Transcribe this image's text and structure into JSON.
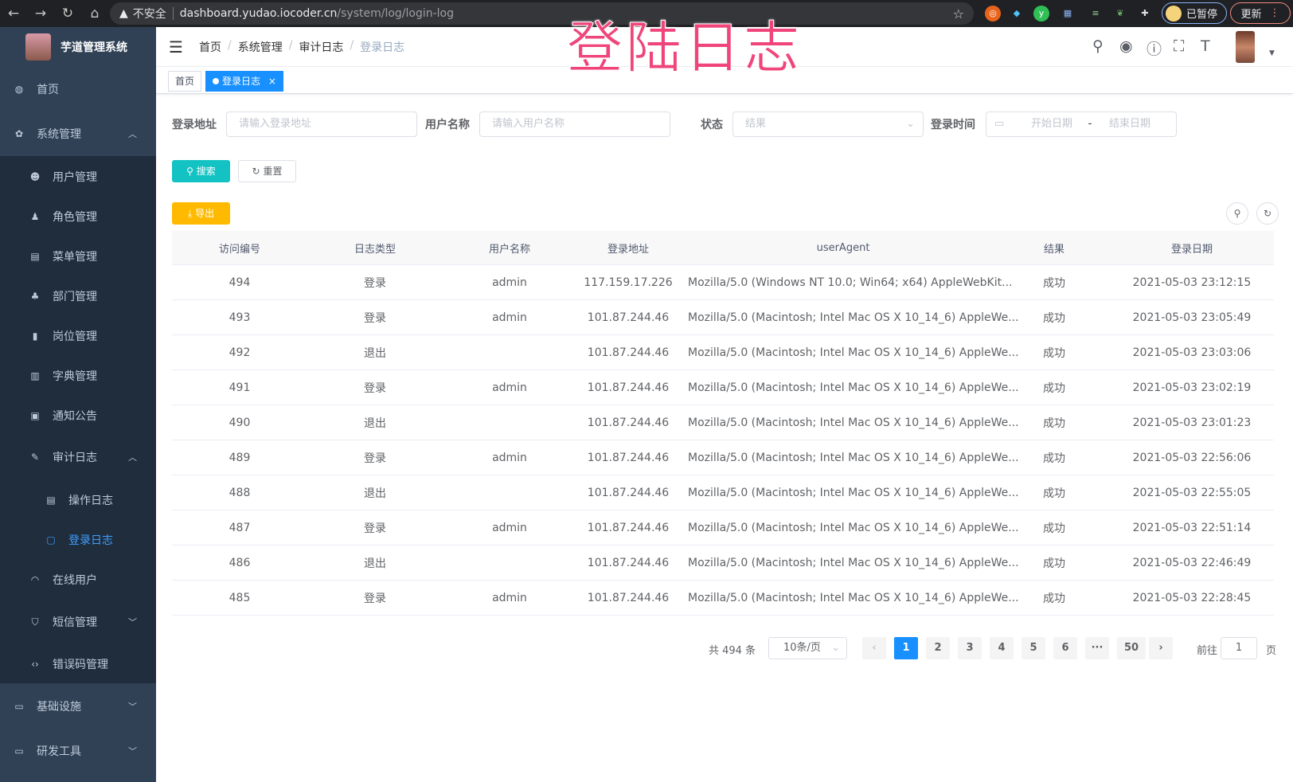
{
  "browser": {
    "insecure_label": "不安全",
    "url_host": "dashboard.yudao.iocoder.cn",
    "url_path": "/system/log/login-log",
    "profile_label": "已暂停",
    "update_label": "更新"
  },
  "overlay_title": "登陆日志",
  "sidebar": {
    "app_title": "芋道管理系统",
    "items": [
      {
        "label": "首页",
        "icon": "dashboard-icon"
      },
      {
        "label": "系统管理",
        "icon": "gear-icon",
        "expanded": true
      },
      {
        "label": "用户管理",
        "icon": "user-icon"
      },
      {
        "label": "角色管理",
        "icon": "peoples-icon"
      },
      {
        "label": "菜单管理",
        "icon": "tree-table-icon"
      },
      {
        "label": "部门管理",
        "icon": "tree-icon"
      },
      {
        "label": "岗位管理",
        "icon": "post-icon"
      },
      {
        "label": "字典管理",
        "icon": "dict-icon"
      },
      {
        "label": "通知公告",
        "icon": "message-icon"
      },
      {
        "label": "审计日志",
        "icon": "log-icon",
        "expanded": true
      },
      {
        "label": "操作日志",
        "icon": "form-icon"
      },
      {
        "label": "登录日志",
        "icon": "logininfor-icon",
        "active": true
      },
      {
        "label": "在线用户",
        "icon": "online-icon"
      },
      {
        "label": "短信管理",
        "icon": "shield-icon",
        "expanded": false
      },
      {
        "label": "错误码管理",
        "icon": "code-icon"
      },
      {
        "label": "基础设施",
        "icon": "monitor-icon",
        "expanded": false
      },
      {
        "label": "研发工具",
        "icon": "tool-icon",
        "expanded": false
      }
    ]
  },
  "breadcrumb": [
    "首页",
    "系统管理",
    "审计日志",
    "登录日志"
  ],
  "tags": [
    {
      "label": "首页"
    },
    {
      "label": "登录日志",
      "active": true,
      "close": "×"
    }
  ],
  "search": {
    "ip_label": "登录地址",
    "ip_placeholder": "请输入登录地址",
    "user_label": "用户名称",
    "user_placeholder": "请输入用户名称",
    "status_label": "状态",
    "status_placeholder": "结果",
    "time_label": "登录时间",
    "start_placeholder": "开始日期",
    "range_sep": "-",
    "end_placeholder": "结束日期",
    "search_btn": "搜索",
    "reset_btn": "重置",
    "export_btn": "导出"
  },
  "table": {
    "columns": [
      "访问编号",
      "日志类型",
      "用户名称",
      "登录地址",
      "userAgent",
      "结果",
      "登录日期"
    ],
    "rows": [
      [
        "494",
        "登录",
        "admin",
        "117.159.17.226",
        "Mozilla/5.0 (Windows NT 10.0; Win64; x64) AppleWebKit...",
        "成功",
        "2021-05-03 23:12:15"
      ],
      [
        "493",
        "登录",
        "admin",
        "101.87.244.46",
        "Mozilla/5.0 (Macintosh; Intel Mac OS X 10_14_6) AppleWe...",
        "成功",
        "2021-05-03 23:05:49"
      ],
      [
        "492",
        "退出",
        "",
        "101.87.244.46",
        "Mozilla/5.0 (Macintosh; Intel Mac OS X 10_14_6) AppleWe...",
        "成功",
        "2021-05-03 23:03:06"
      ],
      [
        "491",
        "登录",
        "admin",
        "101.87.244.46",
        "Mozilla/5.0 (Macintosh; Intel Mac OS X 10_14_6) AppleWe...",
        "成功",
        "2021-05-03 23:02:19"
      ],
      [
        "490",
        "退出",
        "",
        "101.87.244.46",
        "Mozilla/5.0 (Macintosh; Intel Mac OS X 10_14_6) AppleWe...",
        "成功",
        "2021-05-03 23:01:23"
      ],
      [
        "489",
        "登录",
        "admin",
        "101.87.244.46",
        "Mozilla/5.0 (Macintosh; Intel Mac OS X 10_14_6) AppleWe...",
        "成功",
        "2021-05-03 22:56:06"
      ],
      [
        "488",
        "退出",
        "",
        "101.87.244.46",
        "Mozilla/5.0 (Macintosh; Intel Mac OS X 10_14_6) AppleWe...",
        "成功",
        "2021-05-03 22:55:05"
      ],
      [
        "487",
        "登录",
        "admin",
        "101.87.244.46",
        "Mozilla/5.0 (Macintosh; Intel Mac OS X 10_14_6) AppleWe...",
        "成功",
        "2021-05-03 22:51:14"
      ],
      [
        "486",
        "退出",
        "",
        "101.87.244.46",
        "Mozilla/5.0 (Macintosh; Intel Mac OS X 10_14_6) AppleWe...",
        "成功",
        "2021-05-03 22:46:49"
      ],
      [
        "485",
        "登录",
        "admin",
        "101.87.244.46",
        "Mozilla/5.0 (Macintosh; Intel Mac OS X 10_14_6) AppleWe...",
        "成功",
        "2021-05-03 22:28:45"
      ]
    ]
  },
  "pagination": {
    "total_text": "共 494 条",
    "page_size": "10条/页",
    "pages": [
      "1",
      "2",
      "3",
      "4",
      "5",
      "6",
      "···",
      "50"
    ],
    "current": "1",
    "goto_label": "前往",
    "goto_value": "1",
    "page_suffix": "页"
  },
  "colors": {
    "sidebar": "#304156",
    "submenu": "#1f2d3d",
    "primary": "#1890ff",
    "search_btn": "#13c2c2",
    "export_btn": "#ffba00",
    "overlay": "#f0457a"
  }
}
